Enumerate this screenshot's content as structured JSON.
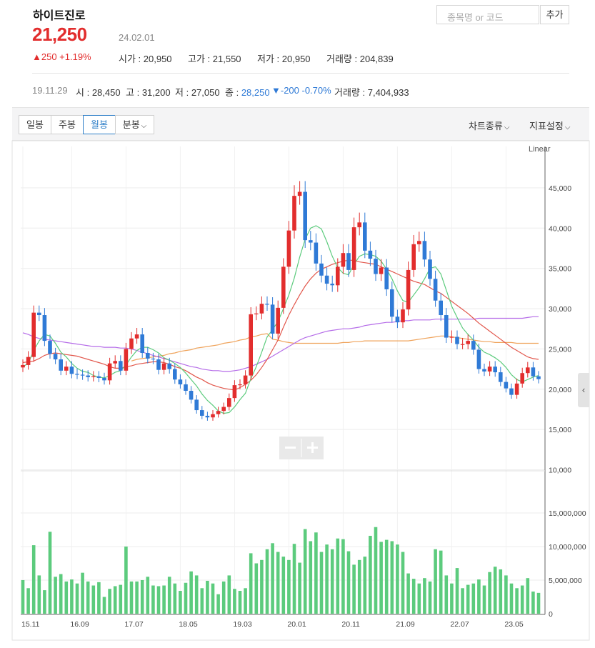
{
  "header": {
    "stock_name": "하이트진로",
    "price": "21,250",
    "date": "24.02.01",
    "change": "▲250 +1.19%",
    "open_label": "시가",
    "open_value": "20,950",
    "high_label": "고가",
    "high_value": "21,550",
    "low_label": "저가",
    "low_value": "20,950",
    "volume_label": "거래량",
    "volume_value": "204,839"
  },
  "search": {
    "placeholder": "종목명 or 코드",
    "add_label": "추가"
  },
  "history": {
    "date": "19.11.29",
    "open_label": "시",
    "open_value": "28,450",
    "high_label": "고",
    "high_value": "31,200",
    "low_label": "저",
    "low_value": "27,050",
    "close_label": "종",
    "close_value": "28,250",
    "change_value": "▼-200 -0.70%",
    "volume_label": "거래량",
    "volume_value": "7,404,933"
  },
  "tabs": [
    {
      "label": "일봉",
      "active": false
    },
    {
      "label": "주봉",
      "active": false
    },
    {
      "label": "월봉",
      "active": true
    },
    {
      "label": "분봉",
      "active": false
    }
  ],
  "menus": {
    "chart_type": "차트종류",
    "indicator": "지표설정"
  },
  "colors": {
    "up": "#e22d2d",
    "down": "#2f7ad6",
    "volume": "#5ccb7d",
    "ma5": "#5ccb7d",
    "ma20": "#e2574c",
    "ma60": "#b56ce8",
    "ma120": "#efa35b"
  },
  "chart_data": [
    {
      "type": "candlestick",
      "scale_label": "Linear",
      "ylim": [
        10000,
        48000
      ],
      "y_ticks": [
        10000,
        15000,
        20000,
        25000,
        30000,
        35000,
        40000,
        45000
      ],
      "y_tick_labels": [
        "10,000",
        "15,000",
        "20,000",
        "25,000",
        "30,000",
        "35,000",
        "40,000",
        "45,000"
      ],
      "x_tick_labels": [
        "15.11",
        "16.09",
        "17.07",
        "18.05",
        "19.03",
        "20.01",
        "20.11",
        "21.09",
        "22.07",
        "23.05"
      ],
      "close": [
        23000,
        24000,
        29500,
        29200,
        26000,
        24400,
        23700,
        22300,
        22800,
        21900,
        21800,
        21700,
        21500,
        21600,
        21400,
        21100,
        23200,
        23500,
        22300,
        25000,
        26300,
        26800,
        24500,
        23800,
        23700,
        22400,
        23200,
        22500,
        21200,
        20600,
        19800,
        18700,
        17400,
        16700,
        16500,
        16900,
        17300,
        17800,
        18900,
        20500,
        20600,
        21700,
        29300,
        29400,
        30600,
        30500,
        26900,
        30100,
        35200,
        39700,
        44000,
        44500,
        38500,
        38200,
        35600,
        34100,
        33100,
        32900,
        35200,
        36900,
        34800,
        40100,
        40700,
        37200,
        36200,
        34300,
        35100,
        32400,
        29000,
        28300,
        29900,
        34800,
        38000,
        38400,
        36100,
        33700,
        31000,
        29200,
        26400,
        26500,
        25600,
        25600,
        26000,
        24900,
        22500,
        22200,
        22800,
        22100,
        20900,
        20100,
        19300,
        20700,
        22000,
        22700,
        21600,
        21250
      ],
      "ma5": [
        22800,
        23200,
        24800,
        26000,
        26800,
        26600,
        25700,
        24600,
        24000,
        23200,
        22600,
        22200,
        22100,
        21700,
        21500,
        21400,
        21700,
        22100,
        22300,
        23000,
        24000,
        24800,
        25200,
        25200,
        24900,
        24500,
        23900,
        23600,
        23200,
        22700,
        22000,
        21200,
        20400,
        19400,
        18600,
        18000,
        17300,
        17000,
        17100,
        17800,
        18700,
        19500,
        21300,
        22800,
        24600,
        26500,
        27400,
        28400,
        30000,
        31700,
        33800,
        36400,
        38600,
        40000,
        40300,
        39900,
        38300,
        36500,
        35100,
        34400,
        34200,
        35500,
        36500,
        36800,
        36700,
        36500,
        35900,
        34900,
        33700,
        32200,
        31000,
        30800,
        31700,
        32600,
        33700,
        35000,
        35200,
        34300,
        32300,
        30300,
        28900,
        27600,
        26800,
        26100,
        25200,
        24600,
        24300,
        23900,
        23400,
        22700,
        21800,
        21200,
        20900,
        21200,
        21500,
        21700
      ],
      "ma20": [
        23300,
        23400,
        23500,
        23800,
        24200,
        24400,
        24500,
        24400,
        24300,
        24200,
        24100,
        23900,
        23700,
        23500,
        23300,
        23100,
        22800,
        22600,
        22600,
        22800,
        22900,
        23100,
        23200,
        23300,
        23400,
        23400,
        23300,
        23100,
        22800,
        22600,
        22300,
        21900,
        21500,
        21200,
        20800,
        20500,
        20300,
        20100,
        20000,
        19900,
        20200,
        20600,
        21100,
        21800,
        22700,
        23700,
        24900,
        26100,
        27700,
        29200,
        30500,
        31700,
        32800,
        33700,
        34400,
        34900,
        35200,
        35500,
        35700,
        35900,
        36000,
        36000,
        35800,
        35700,
        35600,
        35500,
        35200,
        34900,
        34600,
        34300,
        34000,
        33700,
        33400,
        33200,
        33000,
        32600,
        32200,
        31900,
        31400,
        30900,
        30400,
        29900,
        29400,
        28800,
        28200,
        27700,
        27200,
        26700,
        26200,
        25700,
        25200,
        24800,
        24400,
        24000,
        23800,
        23700
      ],
      "ma60": [
        27000,
        26800,
        26500,
        26300,
        26200,
        26100,
        26000,
        25900,
        25800,
        25700,
        25600,
        25500,
        25400,
        25300,
        25300,
        25200,
        25200,
        25200,
        25100,
        25100,
        25000,
        24800,
        24600,
        24400,
        24200,
        24000,
        23800,
        23600,
        23400,
        23200,
        23000,
        22800,
        22700,
        22500,
        22400,
        22300,
        22300,
        22200,
        22200,
        22300,
        22400,
        22600,
        22800,
        23100,
        23400,
        23700,
        24100,
        24500,
        24900,
        25300,
        25700,
        26100,
        26400,
        26600,
        26800,
        27000,
        27200,
        27300,
        27400,
        27500,
        27500,
        27600,
        27700,
        27900,
        28000,
        28100,
        28200,
        28300,
        28300,
        28400,
        28500,
        28500,
        28600,
        28600,
        28600,
        28600,
        28700,
        28700,
        28700,
        28700,
        28700,
        28700,
        28700,
        28700,
        28800,
        28800,
        28800,
        28800,
        28800,
        28800,
        28800,
        28800,
        28800,
        28900,
        29000,
        29000
      ],
      "ma120": [
        null,
        null,
        null,
        null,
        null,
        null,
        null,
        null,
        null,
        null,
        null,
        null,
        null,
        null,
        null,
        null,
        null,
        null,
        null,
        null,
        23500,
        23700,
        23800,
        23900,
        24000,
        24100,
        24200,
        24400,
        24500,
        24700,
        24800,
        24900,
        25100,
        25200,
        25300,
        25400,
        25500,
        25700,
        25800,
        25900,
        26100,
        26200,
        26500,
        26600,
        26800,
        26900,
        26200,
        26100,
        25900,
        25800,
        25700,
        25700,
        25700,
        25700,
        25700,
        25700,
        25700,
        25700,
        25700,
        25800,
        25800,
        25900,
        25900,
        26000,
        26000,
        26000,
        26000,
        26000,
        26000,
        26000,
        26000,
        26000,
        26100,
        26200,
        26300,
        26400,
        26500,
        26600,
        26600,
        26500,
        26400,
        26300,
        26200,
        26100,
        26000,
        25900,
        25900,
        25800,
        25800,
        25800,
        25800,
        25700,
        25700,
        25700,
        25700,
        25700
      ]
    },
    {
      "type": "bar",
      "ylim": [
        0,
        19000000
      ],
      "y_ticks": [
        0,
        5000000,
        10000000,
        15000000
      ],
      "y_tick_labels": [
        "0",
        "5,000,000",
        "10,000,000",
        "15,000,000"
      ],
      "values": [
        5000000,
        3800000,
        10200000,
        5700000,
        3500000,
        12200000,
        5500000,
        5900000,
        4800000,
        5100000,
        4500000,
        6100000,
        4800000,
        4200000,
        4700000,
        2500000,
        3700000,
        4100000,
        4300000,
        10000000,
        4800000,
        4800000,
        5000000,
        5500000,
        4200000,
        4100000,
        4200000,
        5500000,
        4500000,
        3400000,
        4600000,
        6300000,
        5700000,
        3800000,
        4900000,
        4500000,
        2900000,
        4800000,
        5700000,
        3700000,
        3400000,
        3800000,
        9000000,
        7500000,
        8000000,
        9600000,
        10500000,
        9200000,
        8500000,
        8000000,
        10400000,
        7600000,
        12600000,
        10800000,
        12100000,
        9200000,
        10300000,
        9600000,
        11200000,
        11100000,
        9300000,
        7300000,
        8000000,
        8500000,
        11600000,
        12900000,
        10700000,
        11000000,
        10800000,
        10300000,
        9200000,
        6000000,
        5200000,
        4500000,
        5300000,
        4800000,
        9600000,
        9400000,
        5700000,
        4500000,
        6800000,
        3800000,
        4300000,
        4500000,
        5100000,
        4200000,
        6200000,
        7000000,
        6600000,
        5700000,
        4500000,
        3800000,
        4200000,
        5300000,
        3300000,
        3100000
      ]
    }
  ]
}
